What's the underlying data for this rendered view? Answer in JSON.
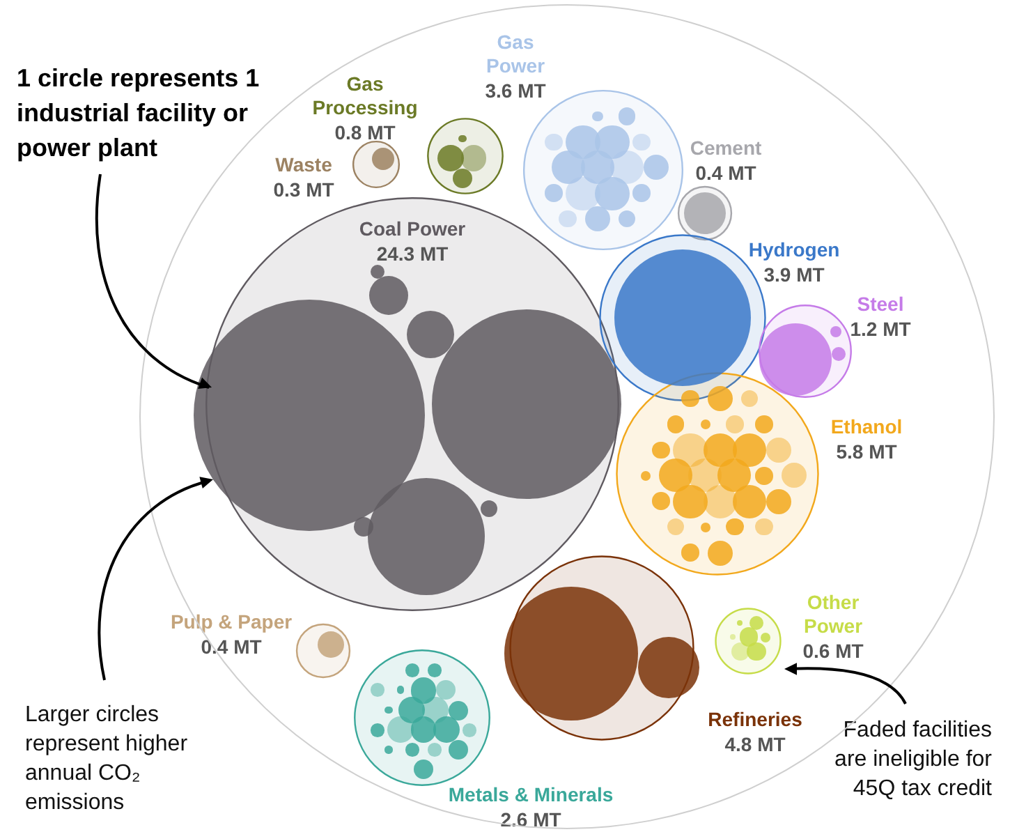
{
  "chart_data": {
    "type": "other",
    "categories": [
      "Coal Power",
      "Gas Power",
      "Gas Processing",
      "Waste",
      "Cement",
      "Hydrogen",
      "Steel",
      "Ethanol",
      "Other Power",
      "Refineries",
      "Metals & Minerals",
      "Pulp & Paper"
    ],
    "values": [
      24.3,
      3.6,
      0.8,
      0.3,
      0.4,
      3.9,
      1.2,
      5.8,
      0.6,
      4.8,
      2.6,
      0.4
    ],
    "value_labels": [
      "24.3 MT",
      "3.6 MT",
      "0.8 MT",
      "0.3 MT",
      "0.4 MT",
      "3.9 MT",
      "1.2 MT",
      "5.8 MT",
      "0.6 MT",
      "4.8 MT",
      "2.6 MT",
      "0.4 MT"
    ],
    "colors": [
      "#5f5a60",
      "#a9c4e8",
      "#6b7a26",
      "#9c8262",
      "#a7a7ac",
      "#3a78c9",
      "#c57be8",
      "#f2a81c",
      "#c6dc48",
      "#7a3208",
      "#3aa89a",
      "#c4a47c"
    ],
    "annotations": [
      "1 circle represents 1 industrial facility or power plant",
      "Larger circles represent higher annual CO₂ emissions",
      "Faded facilities are ineligible for 45Q tax credit"
    ]
  }
}
